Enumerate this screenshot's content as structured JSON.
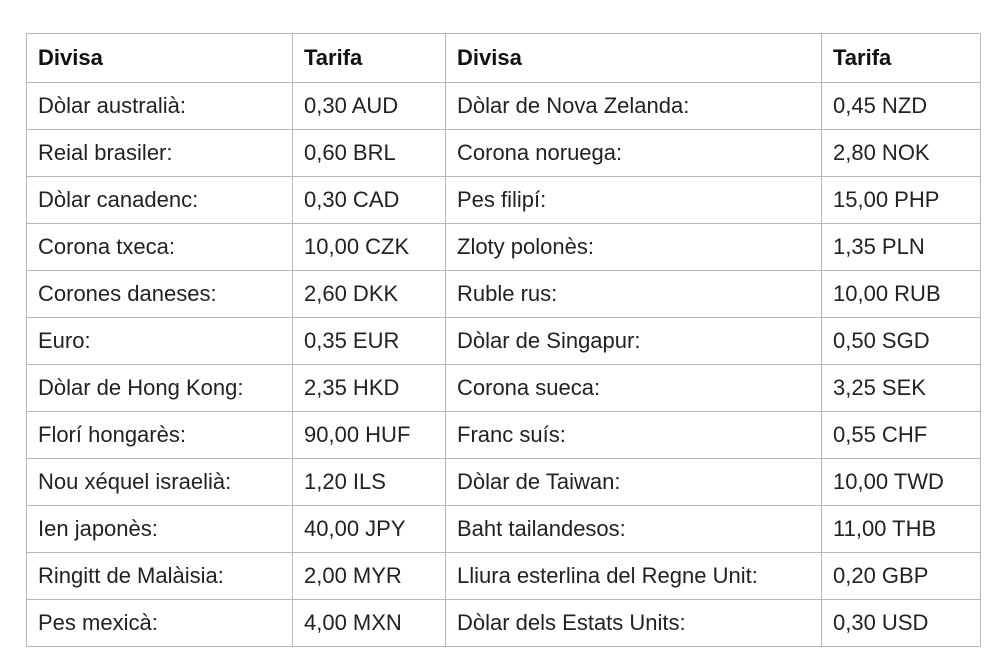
{
  "table": {
    "headers": [
      "Divisa",
      "Tarifa",
      "Divisa",
      "Tarifa"
    ],
    "rows": [
      [
        "Dòlar australià:",
        "0,30 AUD",
        "Dòlar de Nova Zelanda:",
        "0,45 NZD"
      ],
      [
        "Reial brasiler:",
        "0,60 BRL",
        "Corona noruega:",
        "2,80 NOK"
      ],
      [
        "Dòlar canadenc:",
        "0,30 CAD",
        "Pes filipí:",
        "15,00 PHP"
      ],
      [
        "Corona txeca:",
        "10,00 CZK",
        "Zloty polonès:",
        "1,35 PLN"
      ],
      [
        "Corones daneses:",
        "2,60 DKK",
        "Ruble rus:",
        "10,00 RUB"
      ],
      [
        "Euro:",
        "0,35 EUR",
        "Dòlar de Singapur:",
        "0,50 SGD"
      ],
      [
        "Dòlar de Hong Kong:",
        "2,35 HKD",
        "Corona sueca:",
        "3,25 SEK"
      ],
      [
        "Florí hongarès:",
        "90,00 HUF",
        "Franc suís:",
        "0,55 CHF"
      ],
      [
        "Nou xéquel israelià:",
        "1,20 ILS",
        "Dòlar de Taiwan:",
        "10,00 TWD"
      ],
      [
        "Ien japonès:",
        "40,00 JPY",
        "Baht tailandesos:",
        "11,00 THB"
      ],
      [
        "Ringitt de Malàisia:",
        "2,00 MYR",
        "Lliura esterlina del Regne Unit:",
        "0,20 GBP"
      ],
      [
        "Pes mexicà:",
        "4,00 MXN",
        "Dòlar dels Estats Units:",
        "0,30 USD"
      ]
    ]
  }
}
